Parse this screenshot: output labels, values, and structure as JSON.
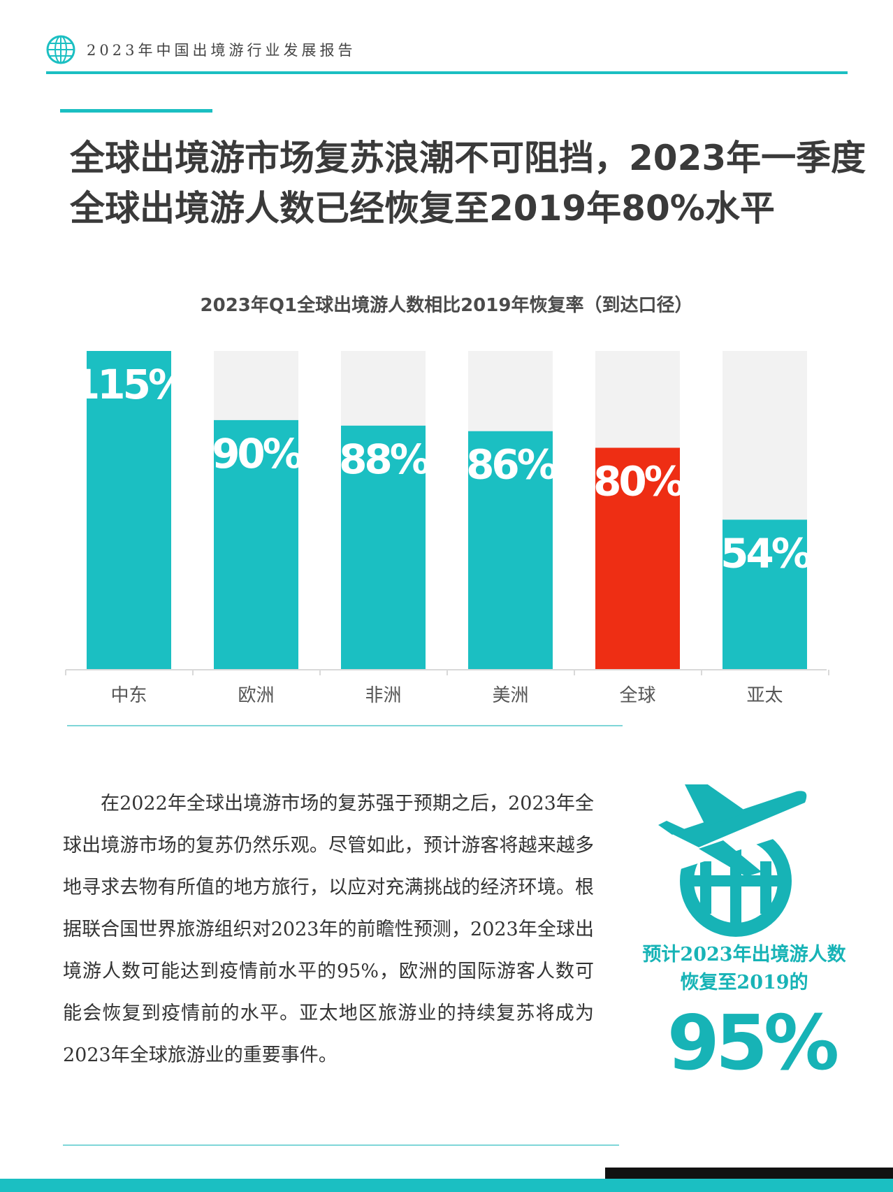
{
  "header": {
    "title": "2023年中国出境游行业发展报告",
    "logo_icon": "globe-logo-icon"
  },
  "headline": {
    "line1": "全球出境游市场复苏浪潮不可阻挡，2023年一季度",
    "line2": "全球出境游人数已经恢复至2019年80%水平"
  },
  "colors": {
    "accent": "#1bbfc2",
    "highlight": "#ee2e14",
    "track": "#f2f2f2"
  },
  "chart_data": {
    "type": "bar",
    "title": "2023年Q1全球出境游人数相比2019年恢复率（到达口径）",
    "categories": [
      "中东",
      "欧洲",
      "非洲",
      "美洲",
      "全球",
      "亚太"
    ],
    "values": [
      115,
      90,
      88,
      86,
      80,
      54
    ],
    "labels": [
      "115%",
      "90%",
      "88%",
      "86%",
      "80%",
      "54%"
    ],
    "highlight_category": "全球",
    "ylim": [
      0,
      115
    ],
    "grid": false,
    "legend": "none"
  },
  "body": {
    "paragraph": "在2022年全球出境游市场的复苏强于预期之后，2023年全球出境游市场的复苏仍然乐观。尽管如此，预计游客将越来越多地寻求去物有所值的地方旅行，以应对充满挑战的经济环境。根据联合国世界旅游组织对2023年的前瞻性预测，2023年全球出境游人数可能达到疫情前水平的95%，欧洲的国际游客人数可能会恢复到疫情前的水平。亚太地区旅游业的持续复苏将成为2023年全球旅游业的重要事件。"
  },
  "callout": {
    "icon": "plane-globe-icon",
    "line1": "预计2023年出境游人数",
    "line2": "恢复至2019的",
    "value": "95%"
  }
}
